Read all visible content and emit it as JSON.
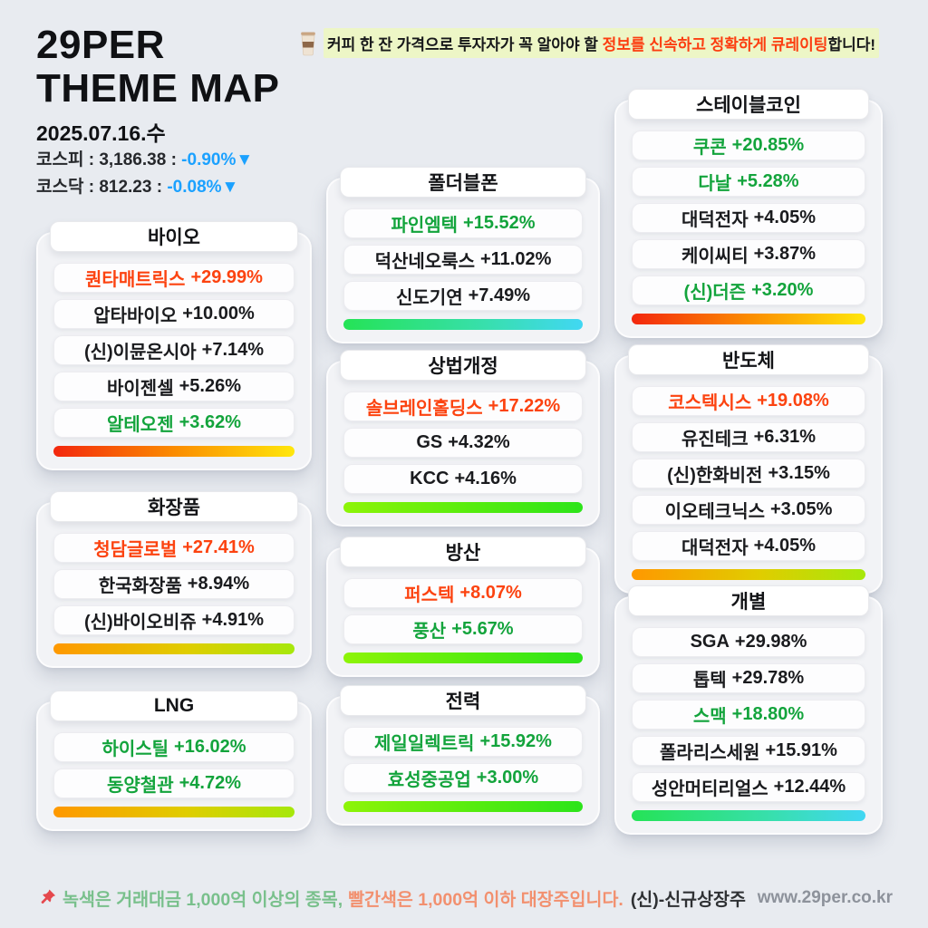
{
  "header": {
    "brand_line1": "29PER",
    "brand_line2": "THEME MAP",
    "date": "2025.07.16.수",
    "kospi": {
      "prefix": "코스피 : 3,186.38 : ",
      "change": "-0.90%▼"
    },
    "kosdaq": {
      "prefix": "코스닥 : 812.23 : ",
      "change": "-0.08%▼"
    },
    "tagline": {
      "pre": "커피 한 잔 가격으로 투자자가 꼭 알아야 할 ",
      "em": "정보를 신속하고 정확하게 큐레이팅",
      "post": "합니다!"
    }
  },
  "themes": [
    {
      "id": "bio",
      "title": "바이오",
      "bar": "red-yellow",
      "stocks": [
        {
          "name": "퀀타매트릭스",
          "change": "+29.99%",
          "color": "red"
        },
        {
          "name": "압타바이오",
          "change": "+10.00%",
          "color": "black"
        },
        {
          "name": "(신)이뮨온시아",
          "change": "+7.14%",
          "color": "black"
        },
        {
          "name": "바이젠셀",
          "change": "+5.26%",
          "color": "black"
        },
        {
          "name": "알테오젠",
          "change": "+3.62%",
          "color": "green"
        }
      ]
    },
    {
      "id": "cosmetics",
      "title": "화장품",
      "bar": "orange-lime",
      "stocks": [
        {
          "name": "청담글로벌",
          "change": "+27.41%",
          "color": "red"
        },
        {
          "name": "한국화장품",
          "change": "+8.94%",
          "color": "black"
        },
        {
          "name": "(신)바이오비쥬",
          "change": "+4.91%",
          "color": "black"
        }
      ]
    },
    {
      "id": "lng",
      "title": "LNG",
      "bar": "orange-lime",
      "stocks": [
        {
          "name": "하이스틸",
          "change": "+16.02%",
          "color": "green"
        },
        {
          "name": "동양철관",
          "change": "+4.72%",
          "color": "green"
        }
      ]
    },
    {
      "id": "foldable",
      "title": "폴더블폰",
      "bar": "green-cyan",
      "stocks": [
        {
          "name": "파인엠텍",
          "change": "+15.52%",
          "color": "green"
        },
        {
          "name": "덕산네오룩스",
          "change": "+11.02%",
          "color": "black"
        },
        {
          "name": "신도기연",
          "change": "+7.49%",
          "color": "black"
        }
      ]
    },
    {
      "id": "commercial-law",
      "title": "상법개정",
      "bar": "lime-green",
      "stocks": [
        {
          "name": "솔브레인홀딩스",
          "change": "+17.22%",
          "color": "red"
        },
        {
          "name": "GS",
          "change": "+4.32%",
          "color": "black"
        },
        {
          "name": "KCC",
          "change": "+4.16%",
          "color": "black"
        }
      ]
    },
    {
      "id": "defense",
      "title": "방산",
      "bar": "lime-green",
      "stocks": [
        {
          "name": "퍼스텍",
          "change": "+8.07%",
          "color": "red"
        },
        {
          "name": "풍산",
          "change": "+5.67%",
          "color": "green"
        }
      ]
    },
    {
      "id": "power",
      "title": "전력",
      "bar": "lime-green",
      "stocks": [
        {
          "name": "제일일렉트릭",
          "change": "+15.92%",
          "color": "green"
        },
        {
          "name": "효성중공업",
          "change": "+3.00%",
          "color": "green"
        }
      ]
    },
    {
      "id": "stablecoin",
      "title": "스테이블코인",
      "bar": "red-yellow",
      "stocks": [
        {
          "name": "쿠콘",
          "change": "+20.85%",
          "color": "green"
        },
        {
          "name": "다날",
          "change": "+5.28%",
          "color": "green"
        },
        {
          "name": "대덕전자",
          "change": "+4.05%",
          "color": "black"
        },
        {
          "name": "케이씨티",
          "change": "+3.87%",
          "color": "black"
        },
        {
          "name": "(신)더즌",
          "change": "+3.20%",
          "color": "green"
        }
      ]
    },
    {
      "id": "semiconductor",
      "title": "반도체",
      "bar": "orange-lime",
      "stocks": [
        {
          "name": "코스텍시스",
          "change": "+19.08%",
          "color": "red"
        },
        {
          "name": "유진테크",
          "change": "+6.31%",
          "color": "black"
        },
        {
          "name": "(신)한화비전",
          "change": "+3.15%",
          "color": "black"
        },
        {
          "name": "이오테크닉스",
          "change": "+3.05%",
          "color": "black"
        },
        {
          "name": "대덕전자",
          "change": "+4.05%",
          "color": "black"
        }
      ]
    },
    {
      "id": "individual",
      "title": "개별",
      "bar": "green-cyan",
      "stocks": [
        {
          "name": "SGA",
          "change": "+29.98%",
          "color": "black"
        },
        {
          "name": "톱텍",
          "change": "+29.78%",
          "color": "black"
        },
        {
          "name": "스맥",
          "change": "+18.80%",
          "color": "green"
        },
        {
          "name": "폴라리스세원",
          "change": "+15.91%",
          "color": "black"
        },
        {
          "name": "성안머티리얼스",
          "change": "+12.44%",
          "color": "black"
        }
      ]
    }
  ],
  "footer": {
    "note_green": "녹색은 거래대금 1,000억 이상의 종목,",
    "note_red": "빨간색은 1,000억 이하 대장주입니다.",
    "note_suffix": "(신)-신규상장주",
    "url": "www.29per.co.kr"
  },
  "colors": {
    "background": "#e8ebf0",
    "card_bg": "#f2f3f6",
    "stock_red": "#fc4310",
    "stock_green": "#13a43c",
    "stock_black": "#1a1b1e",
    "index_blue": "#1ba1ff",
    "tagline_highlight_bg": "#edf6c6",
    "tagline_red": "#fc3d10",
    "footer_green": "#79c08c",
    "footer_red": "#f2906f",
    "url_gray": "#8d929b"
  },
  "chart_data": {
    "type": "table",
    "title": "29PER THEME MAP",
    "date": "2025.07.16.수",
    "indices": [
      {
        "name": "코스피",
        "value": 3186.38,
        "change_pct": -0.9
      },
      {
        "name": "코스닥",
        "value": 812.23,
        "change_pct": -0.08
      }
    ],
    "groups": [
      {
        "theme": "바이오",
        "stocks": [
          [
            "퀀타매트릭스",
            29.99
          ],
          [
            "압타바이오",
            10.0
          ],
          [
            "(신)이뮨온시아",
            7.14
          ],
          [
            "바이젠셀",
            5.26
          ],
          [
            "알테오젠",
            3.62
          ]
        ]
      },
      {
        "theme": "화장품",
        "stocks": [
          [
            "청담글로벌",
            27.41
          ],
          [
            "한국화장품",
            8.94
          ],
          [
            "(신)바이오비쥬",
            4.91
          ]
        ]
      },
      {
        "theme": "LNG",
        "stocks": [
          [
            "하이스틸",
            16.02
          ],
          [
            "동양철관",
            4.72
          ]
        ]
      },
      {
        "theme": "폴더블폰",
        "stocks": [
          [
            "파인엠텍",
            15.52
          ],
          [
            "덕산네오룩스",
            11.02
          ],
          [
            "신도기연",
            7.49
          ]
        ]
      },
      {
        "theme": "상법개정",
        "stocks": [
          [
            "솔브레인홀딩스",
            17.22
          ],
          [
            "GS",
            4.32
          ],
          [
            "KCC",
            4.16
          ]
        ]
      },
      {
        "theme": "방산",
        "stocks": [
          [
            "퍼스텍",
            8.07
          ],
          [
            "풍산",
            5.67
          ]
        ]
      },
      {
        "theme": "전력",
        "stocks": [
          [
            "제일일렉트릭",
            15.92
          ],
          [
            "효성중공업",
            3.0
          ]
        ]
      },
      {
        "theme": "스테이블코인",
        "stocks": [
          [
            "쿠콘",
            20.85
          ],
          [
            "다날",
            5.28
          ],
          [
            "대덕전자",
            4.05
          ],
          [
            "케이씨티",
            3.87
          ],
          [
            "(신)더즌",
            3.2
          ]
        ]
      },
      {
        "theme": "반도체",
        "stocks": [
          [
            "코스텍시스",
            19.08
          ],
          [
            "유진테크",
            6.31
          ],
          [
            "(신)한화비전",
            3.15
          ],
          [
            "이오테크닉스",
            3.05
          ],
          [
            "대덕전자",
            4.05
          ]
        ]
      },
      {
        "theme": "개별",
        "stocks": [
          [
            "SGA",
            29.98
          ],
          [
            "톱텍",
            29.78
          ],
          [
            "스맥",
            18.8
          ],
          [
            "폴라리스세원",
            15.91
          ],
          [
            "성안머티리얼스",
            12.44
          ]
        ]
      }
    ]
  }
}
